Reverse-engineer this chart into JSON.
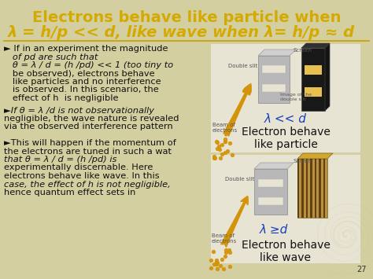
{
  "bg_color": "#d4cfa0",
  "title_line1": "Electrons behave like particle when",
  "title_line2": "λ = h/p << d, like wave when λ= h/p ≈ d",
  "title_color": "#d4aa00",
  "body_color": "#111111",
  "bullet1_header": "► If in an experiment the magnitude",
  "bullet1_lines": [
    "   of pd are such that",
    "   θ = λ / d = (h /pd) << 1 (too tiny to",
    "   be observed), electrons behave",
    "   like particles and no interference",
    "   is observed. In this scenario, the",
    "   effect of h  is negligible"
  ],
  "bullet2_lines": [
    "►If θ = λ /d is not observationally",
    "negligible, the wave nature is revealed",
    "via the observed interference pattern"
  ],
  "bullet3_lines": [
    "►This will happen if the momentum of",
    "the electrons are tuned in such a wat",
    "that θ = λ / d = (h /pd) is",
    "experimentally discernable. Here",
    "electrons behave like wave. In this",
    "case, the effect of h is not negligible,",
    "hence quantum effect sets in"
  ],
  "label_top": "Electron behave\nlike particle",
  "label_bottom": "Electron behave\nlike wave",
  "lambda_top": "λ << d",
  "lambda_bottom": "λ ≥d",
  "page_number": "27",
  "font_size_title1": 14,
  "font_size_title2": 14,
  "font_size_body": 8.2,
  "font_size_label": 10,
  "font_size_lambda": 10,
  "font_size_small": 5,
  "diag_bg": "#e8e4d0",
  "screen_color_top": "#1a1a1a",
  "screen_highlight": "#e8c060",
  "slit_color": "#b0b0b0",
  "screen_color_bot": "#c8a040",
  "stripe_color": "#5a3800",
  "arrow_color": "#d4940a",
  "dot_color": "#d4940a",
  "lambda_color": "#1a40c0",
  "label_color": "#111111",
  "small_label_color": "#555555",
  "underline_color": "#c8a000"
}
